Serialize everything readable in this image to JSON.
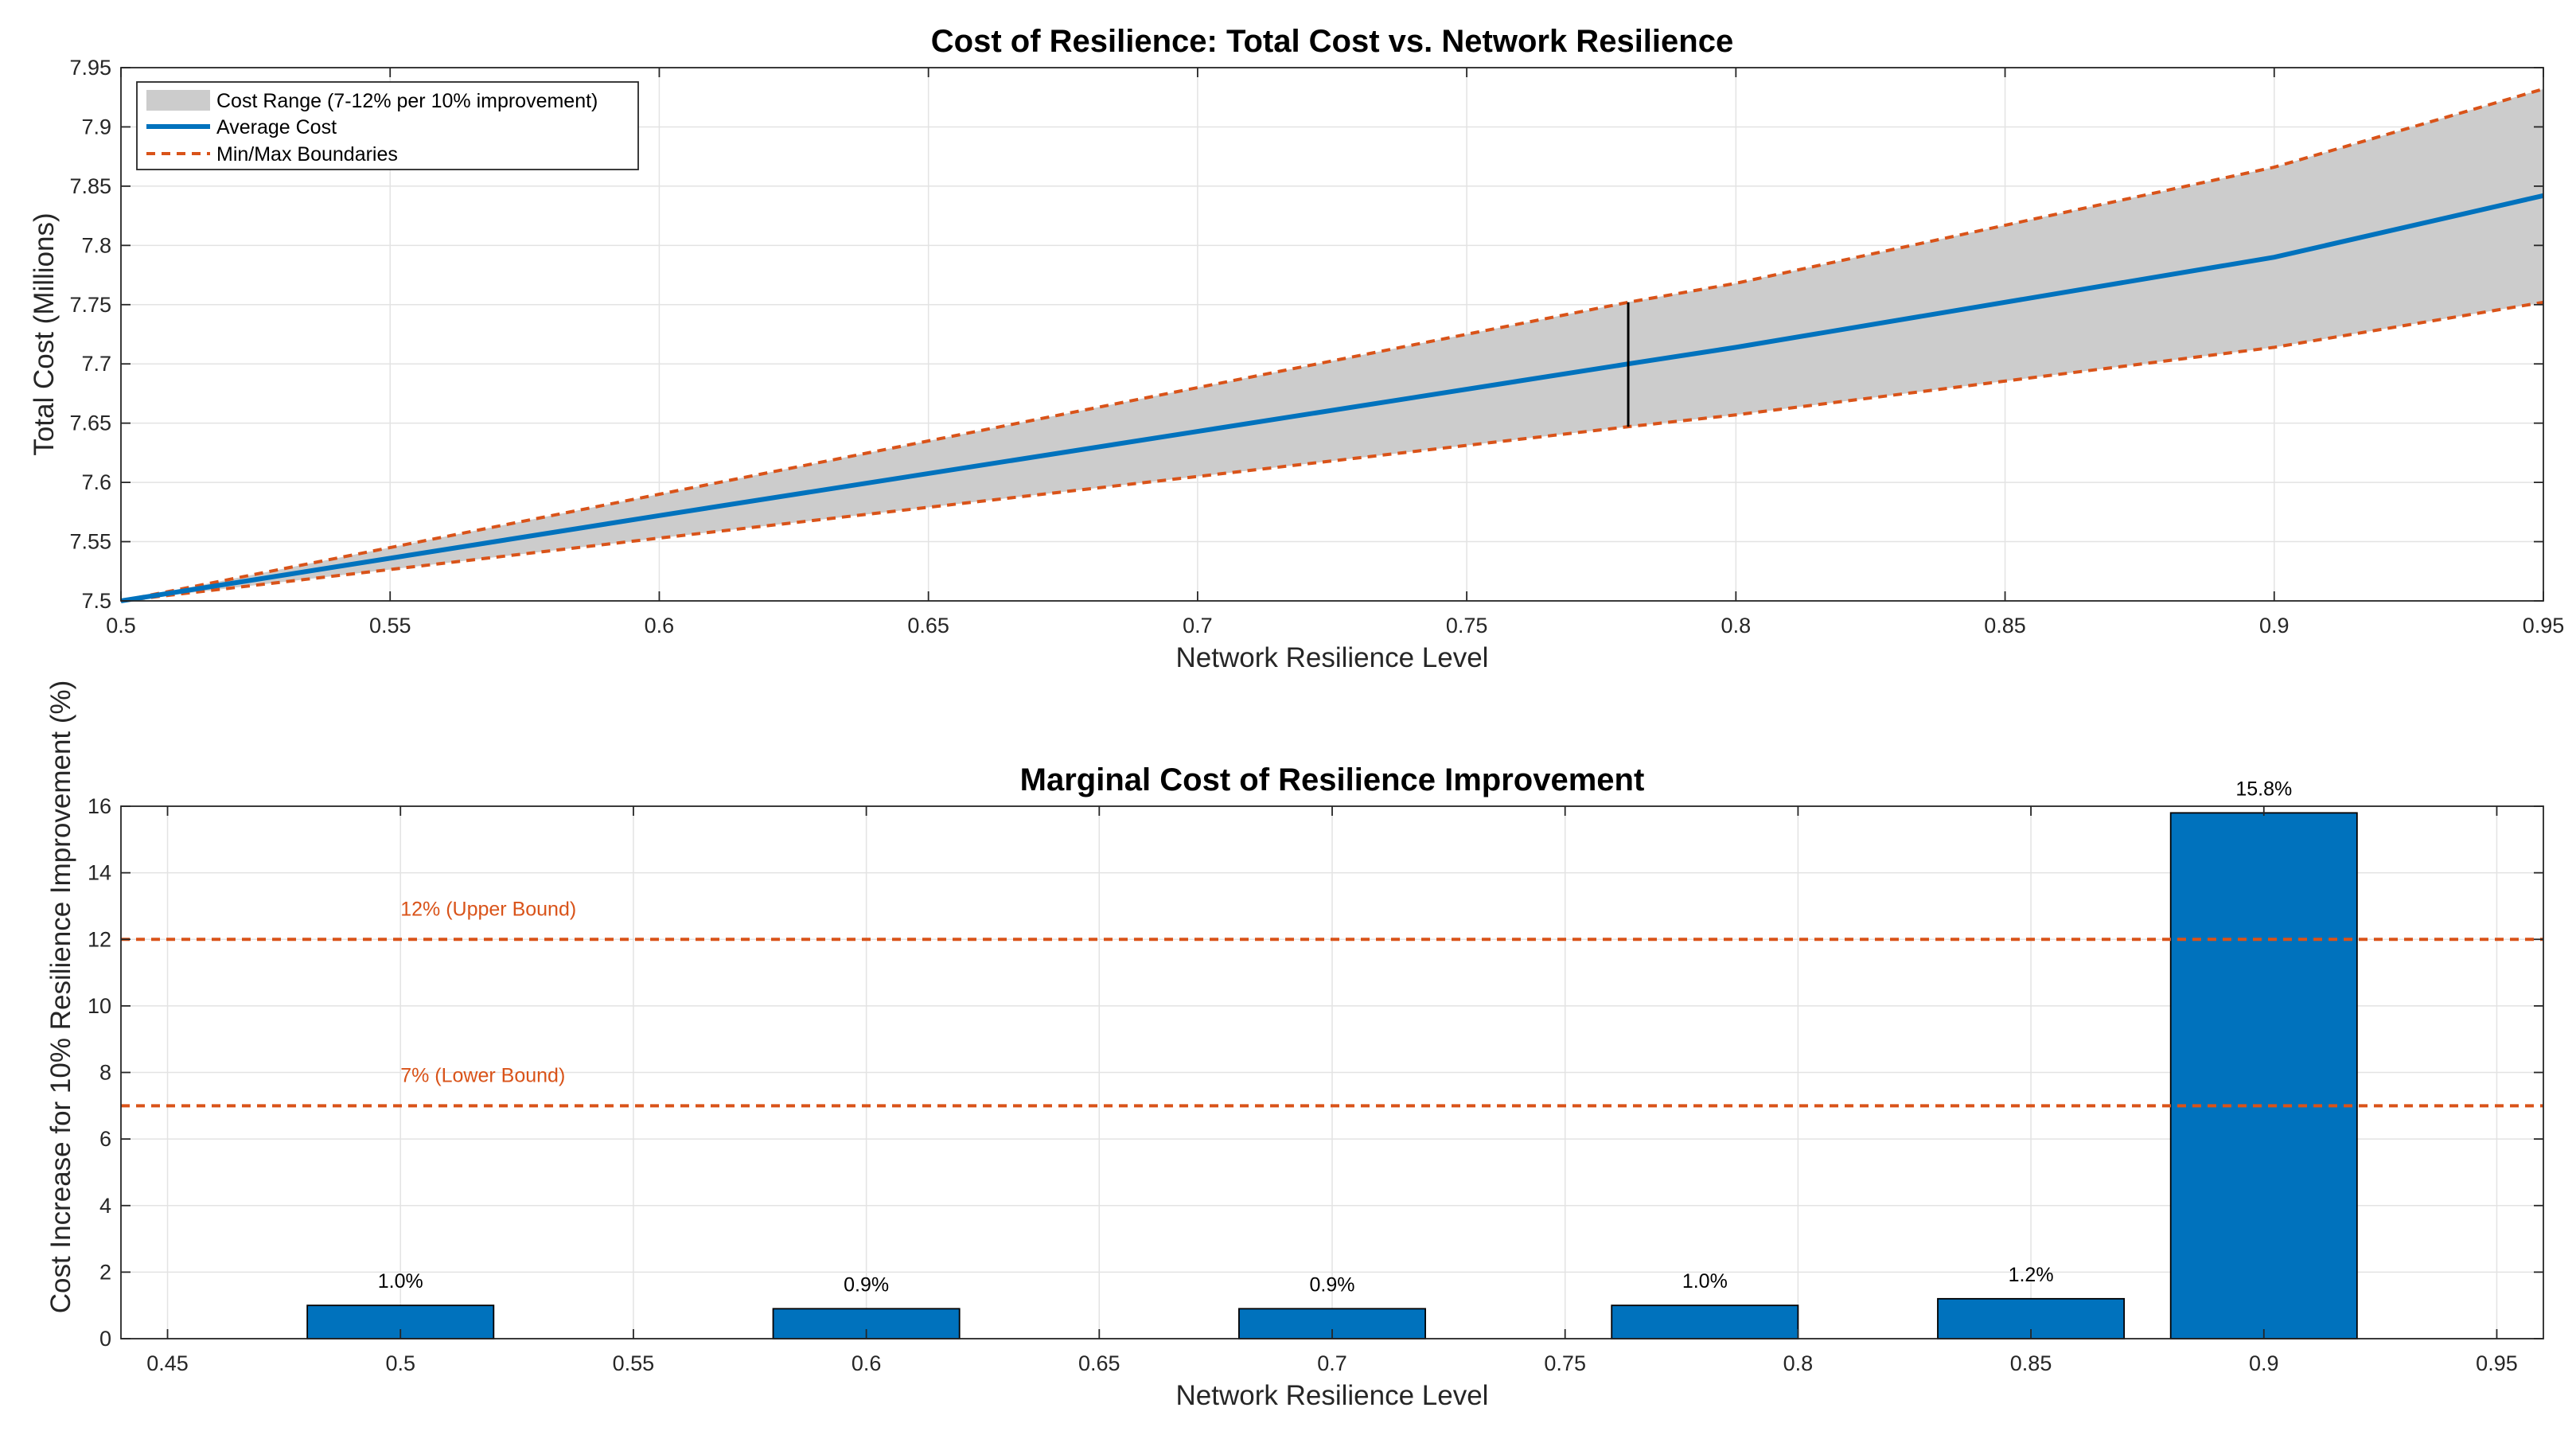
{
  "colors": {
    "average": "#0072BD",
    "band": "#cccccc",
    "boundary": "#D95319",
    "bar": "#0072BD",
    "bar_edge": "#000000",
    "marker": "#000000"
  },
  "chart_data": [
    {
      "type": "area",
      "title": "Cost of Resilience: Total Cost vs. Network Resilience",
      "xlabel": "Network Resilience Level",
      "ylabel": "Total Cost (Millions)",
      "xlim": [
        0.5,
        0.95
      ],
      "ylim": [
        7.5,
        7.95
      ],
      "xticks": [
        0.5,
        0.55,
        0.6,
        0.65,
        0.7,
        0.75,
        0.8,
        0.85,
        0.9,
        0.95
      ],
      "xtick_labels": [
        "0.5",
        "0.55",
        "0.6",
        "0.65",
        "0.7",
        "0.75",
        "0.8",
        "0.85",
        "0.9",
        "0.95"
      ],
      "yticks": [
        7.5,
        7.55,
        7.6,
        7.65,
        7.7,
        7.75,
        7.8,
        7.85,
        7.9,
        7.95
      ],
      "ytick_labels": [
        "7.5",
        "7.55",
        "7.6",
        "7.65",
        "7.7",
        "7.75",
        "7.8",
        "7.85",
        "7.9",
        "7.95"
      ],
      "grid": true,
      "legend_location": "top-left",
      "x": [
        0.5,
        0.6,
        0.7,
        0.78,
        0.8,
        0.9,
        0.95
      ],
      "series": [
        {
          "name": "Cost Range (7-12% per 10% improvement)",
          "kind": "band",
          "lower": [
            7.5,
            7.553,
            7.605,
            7.647,
            7.657,
            7.714,
            7.752
          ],
          "upper": [
            7.5,
            7.59,
            7.68,
            7.752,
            7.768,
            7.866,
            7.932
          ]
        },
        {
          "name": "Average Cost",
          "kind": "line",
          "values": [
            7.5,
            7.572,
            7.643,
            7.7,
            7.714,
            7.79,
            7.842
          ]
        },
        {
          "name": "Min/Max Boundaries",
          "kind": "dashed"
        }
      ],
      "marker_x": 0.78,
      "marker_range": [
        7.647,
        7.752
      ]
    },
    {
      "type": "bar",
      "title": "Marginal Cost of Resilience Improvement",
      "xlabel": "Network Resilience Level",
      "ylabel": "Cost Increase for 10% Resilience Improvement (%)",
      "xlim": [
        0.44,
        0.96
      ],
      "ylim": [
        0,
        16
      ],
      "xticks": [
        0.45,
        0.5,
        0.55,
        0.6,
        0.65,
        0.7,
        0.75,
        0.8,
        0.85,
        0.9,
        0.95
      ],
      "xtick_labels": [
        "0.45",
        "0.5",
        "0.55",
        "0.6",
        "0.65",
        "0.7",
        "0.75",
        "0.8",
        "0.85",
        "0.9",
        "0.95"
      ],
      "yticks": [
        0,
        2,
        4,
        6,
        8,
        10,
        12,
        14,
        16
      ],
      "ytick_labels": [
        "0",
        "2",
        "4",
        "6",
        "8",
        "10",
        "12",
        "14",
        "16"
      ],
      "grid": true,
      "bar_width": 0.04,
      "categories": [
        0.5,
        0.6,
        0.7,
        0.78,
        0.85,
        0.9
      ],
      "values": [
        1.0,
        0.9,
        0.9,
        1.0,
        1.2,
        15.8
      ],
      "labels": [
        "1.0%",
        "0.9%",
        "0.9%",
        "1.0%",
        "1.2%",
        "15.8%"
      ],
      "reference_lines": [
        {
          "y": 12,
          "label": "12% (Upper Bound)"
        },
        {
          "y": 7,
          "label": "7% (Lower Bound)"
        }
      ]
    }
  ]
}
